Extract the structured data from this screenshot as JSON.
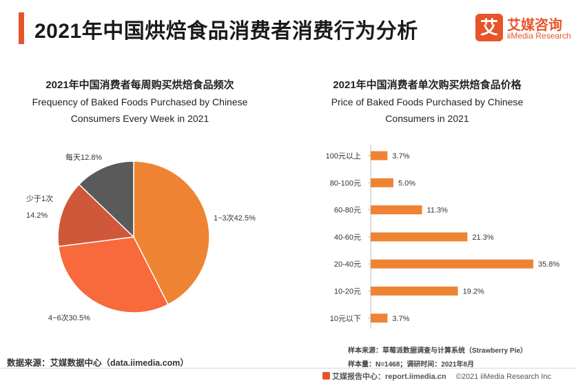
{
  "header": {
    "title": "2021年中国烘焙食品消费者消费行为分析",
    "logo": {
      "mark": "艾",
      "name_cn": "艾媒咨询",
      "name_en": "iiMedia Research"
    }
  },
  "chart_data": [
    {
      "type": "pie",
      "title_cn": "2021年中国消费者每周购买烘焙食品频次",
      "title_en_line1": "Frequency of Baked Foods Purchased by Chinese",
      "title_en_line2": "Consumers Every Week in 2021",
      "slices": [
        {
          "label": "1~3次",
          "value": 42.5,
          "display": "42.5%",
          "color": "#ee8433"
        },
        {
          "label": "4~6次",
          "value": 30.5,
          "display": "30.5%",
          "color": "#f8693c"
        },
        {
          "label": "少于1次",
          "value": 14.2,
          "display": "14.2%",
          "color": "#d0583a"
        },
        {
          "label": "每天",
          "value": 12.8,
          "display": "12.8%",
          "color": "#5a5a5a"
        }
      ]
    },
    {
      "type": "bar",
      "orientation": "horizontal",
      "title_cn": "2021年中国消费者单次购买烘焙食品价格",
      "title_en_line1": "Price of Baked Foods Purchased by Chinese",
      "title_en_line2": "Consumers in 2021",
      "categories": [
        "100元以上",
        "80-100元",
        "60-80元",
        "40-60元",
        "20-40元",
        "10-20元",
        "10元以下"
      ],
      "values": [
        3.7,
        5.0,
        11.3,
        21.3,
        35.8,
        19.2,
        3.7
      ],
      "value_labels": [
        "3.7%",
        "5.0%",
        "11.3%",
        "21.3%",
        "35.8%",
        "19.2%",
        "3.7%"
      ],
      "color": "#ee8433",
      "xlim": [
        0,
        35.8
      ]
    }
  ],
  "sources": {
    "left": "数据来源：艾媒数据中心（data.iimedia.com）",
    "sample_source": "样本来源：草莓派数据调查与计算系统（Strawberry Pie）",
    "sample_size": "样本量：N=1468；调研时间：2021年8月"
  },
  "footer": {
    "center": "艾媒报告中心：report.iimedia.cn",
    "copyright": "©2021  iiMedia Research  Inc"
  }
}
